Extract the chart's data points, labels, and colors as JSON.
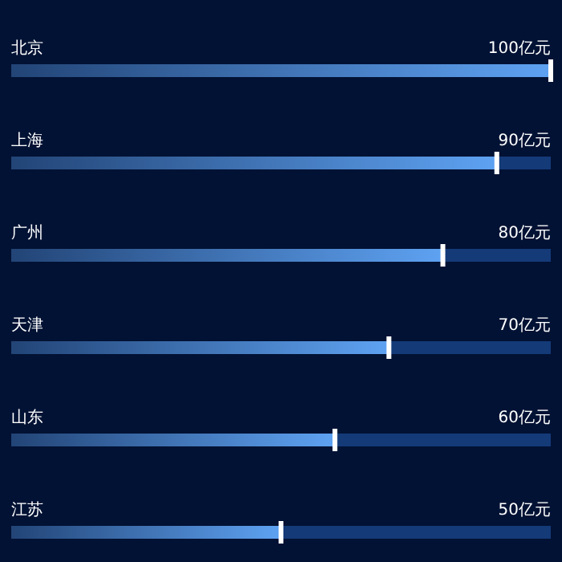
{
  "chart_data": {
    "type": "bar",
    "orientation": "horizontal",
    "relative": false,
    "categories": [
      "北京",
      "上海",
      "广州",
      "天津",
      "山东",
      "江苏"
    ],
    "values": [
      100,
      90,
      80,
      70,
      60,
      50
    ],
    "value_labels": [
      "100亿元",
      "90亿元",
      "80亿元",
      "70亿元",
      "60亿元",
      "50亿元"
    ],
    "color": "#5ea2f2"
  }
}
